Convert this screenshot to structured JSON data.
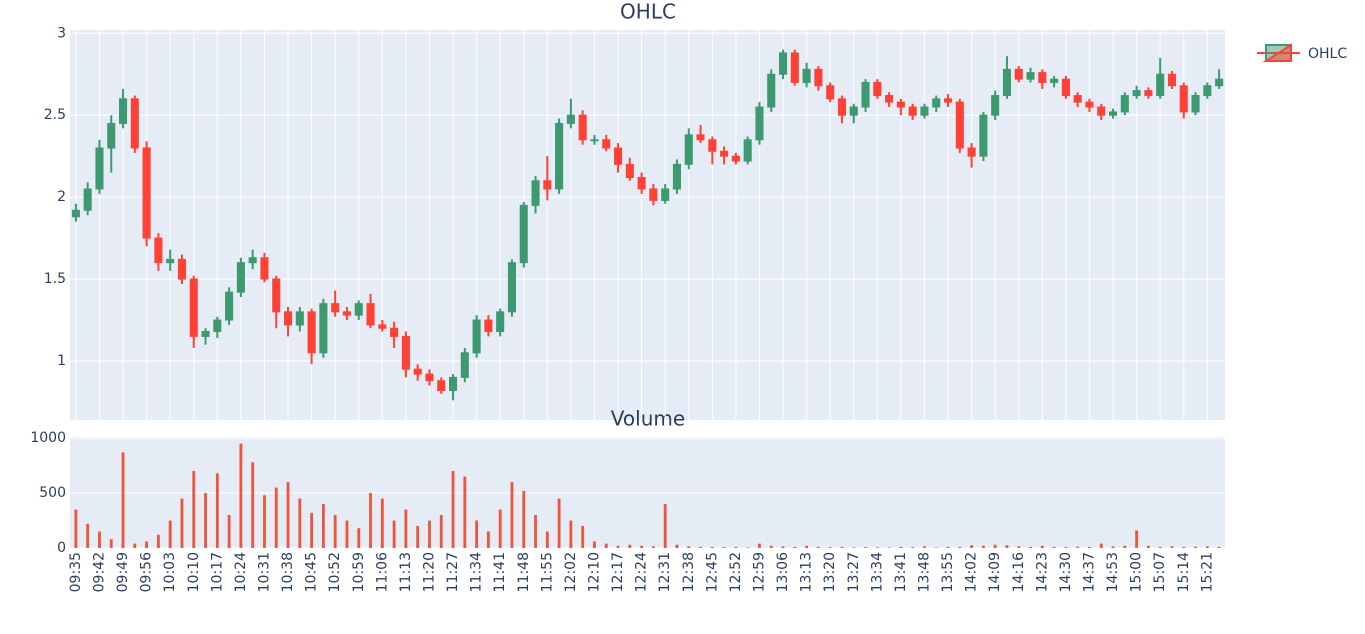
{
  "chart_data": [
    {
      "type": "candlestick",
      "title": "OHLC",
      "name": "OHLC",
      "increasing_color": "#3D9970",
      "decreasing_color": "#FF4136",
      "categories": [
        "09:35",
        null,
        "09:42",
        null,
        "09:49",
        null,
        "09:56",
        null,
        "10:03",
        null,
        "10:10",
        null,
        "10:17",
        null,
        "10:24",
        null,
        "10:31",
        null,
        "10:38",
        null,
        "10:45",
        null,
        "10:52",
        null,
        "10:59",
        null,
        "11:06",
        null,
        "11:13",
        null,
        "11:20",
        null,
        "11:27",
        null,
        "11:34",
        null,
        "11:41",
        null,
        "11:48",
        null,
        "11:55",
        null,
        "12:02",
        null,
        "12:10",
        null,
        "12:17",
        null,
        "12:24",
        null,
        "12:31",
        null,
        "12:38",
        null,
        "12:45",
        null,
        "12:52",
        null,
        "12:59",
        null,
        "13:06",
        null,
        "13:13",
        null,
        "13:20",
        null,
        "13:27",
        null,
        "13:34",
        null,
        "13:41",
        null,
        "13:48",
        null,
        "13:55",
        null,
        "14:02",
        null,
        "14:09",
        null,
        "14:16",
        null,
        "14:23",
        null,
        "14:30",
        null,
        "14:37",
        null,
        "14:53",
        null,
        "15:00",
        null,
        "15:07",
        null,
        "15:14",
        null,
        "15:21",
        null
      ],
      "open": [
        1.88,
        1.92,
        2.05,
        2.3,
        2.45,
        2.6,
        2.3,
        1.75,
        1.6,
        1.62,
        1.5,
        1.15,
        1.18,
        1.25,
        1.42,
        1.6,
        1.63,
        1.5,
        1.3,
        1.22,
        1.3,
        1.05,
        1.35,
        1.3,
        1.28,
        1.35,
        1.22,
        1.2,
        1.15,
        0.95,
        0.92,
        0.88,
        0.82,
        0.9,
        1.05,
        1.25,
        1.18,
        1.3,
        1.6,
        1.95,
        2.1,
        2.05,
        2.45,
        2.5,
        2.35,
        2.35,
        2.3,
        2.2,
        2.12,
        2.05,
        1.98,
        2.05,
        2.2,
        2.38,
        2.35,
        2.28,
        2.25,
        2.22,
        2.35,
        2.55,
        2.75,
        2.88,
        2.7,
        2.78,
        2.68,
        2.6,
        2.5,
        2.55,
        2.7,
        2.62,
        2.58,
        2.55,
        2.5,
        2.55,
        2.6,
        2.58,
        2.3,
        2.25,
        2.5,
        2.62,
        2.78,
        2.72,
        2.76,
        2.7,
        2.72,
        2.62,
        2.58,
        2.55,
        2.5,
        2.52,
        2.62,
        2.65,
        2.62,
        2.75,
        2.68,
        2.52,
        2.62,
        2.68
      ],
      "high": [
        1.96,
        2.09,
        2.35,
        2.5,
        2.66,
        2.62,
        2.34,
        1.78,
        1.68,
        1.65,
        1.52,
        1.2,
        1.27,
        1.45,
        1.63,
        1.68,
        1.66,
        1.52,
        1.33,
        1.33,
        1.32,
        1.38,
        1.43,
        1.33,
        1.37,
        1.41,
        1.25,
        1.24,
        1.18,
        0.98,
        0.95,
        0.9,
        0.92,
        1.08,
        1.28,
        1.28,
        1.32,
        1.62,
        1.97,
        2.13,
        2.25,
        2.48,
        2.6,
        2.53,
        2.38,
        2.38,
        2.33,
        2.24,
        2.15,
        2.08,
        2.08,
        2.23,
        2.42,
        2.44,
        2.37,
        2.31,
        2.27,
        2.37,
        2.58,
        2.78,
        2.9,
        2.9,
        2.82,
        2.8,
        2.7,
        2.62,
        2.57,
        2.72,
        2.72,
        2.64,
        2.6,
        2.57,
        2.57,
        2.62,
        2.63,
        2.6,
        2.33,
        2.52,
        2.65,
        2.86,
        2.8,
        2.79,
        2.78,
        2.74,
        2.74,
        2.64,
        2.6,
        2.57,
        2.54,
        2.64,
        2.68,
        2.67,
        2.85,
        2.77,
        2.7,
        2.64,
        2.7,
        2.78
      ],
      "low": [
        1.85,
        1.89,
        2.02,
        2.15,
        2.42,
        2.27,
        1.7,
        1.55,
        1.55,
        1.47,
        1.08,
        1.1,
        1.14,
        1.22,
        1.39,
        1.56,
        1.48,
        1.2,
        1.15,
        1.18,
        0.98,
        1.02,
        1.27,
        1.25,
        1.25,
        1.2,
        1.18,
        1.08,
        0.9,
        0.88,
        0.85,
        0.8,
        0.76,
        0.87,
        1.02,
        1.15,
        1.15,
        1.27,
        1.57,
        1.9,
        1.98,
        2.02,
        2.42,
        2.32,
        2.32,
        2.28,
        2.15,
        2.1,
        2.02,
        1.95,
        1.96,
        2.02,
        2.17,
        2.33,
        2.2,
        2.2,
        2.2,
        2.2,
        2.32,
        2.52,
        2.72,
        2.68,
        2.67,
        2.65,
        2.58,
        2.45,
        2.45,
        2.52,
        2.6,
        2.55,
        2.5,
        2.47,
        2.48,
        2.52,
        2.55,
        2.27,
        2.18,
        2.22,
        2.47,
        2.6,
        2.7,
        2.7,
        2.66,
        2.67,
        2.6,
        2.55,
        2.52,
        2.47,
        2.48,
        2.5,
        2.6,
        2.6,
        2.6,
        2.66,
        2.48,
        2.5,
        2.6,
        2.66
      ],
      "close": [
        1.92,
        2.05,
        2.3,
        2.45,
        2.6,
        2.3,
        1.75,
        1.6,
        1.62,
        1.5,
        1.15,
        1.18,
        1.25,
        1.42,
        1.6,
        1.63,
        1.5,
        1.3,
        1.22,
        1.3,
        1.05,
        1.35,
        1.3,
        1.28,
        1.35,
        1.22,
        1.2,
        1.15,
        0.95,
        0.92,
        0.88,
        0.82,
        0.9,
        1.05,
        1.25,
        1.18,
        1.3,
        1.6,
        1.95,
        2.1,
        2.05,
        2.45,
        2.5,
        2.35,
        2.35,
        2.3,
        2.2,
        2.12,
        2.05,
        1.98,
        2.05,
        2.2,
        2.38,
        2.35,
        2.28,
        2.25,
        2.22,
        2.35,
        2.55,
        2.75,
        2.88,
        2.7,
        2.78,
        2.68,
        2.6,
        2.5,
        2.55,
        2.7,
        2.62,
        2.58,
        2.55,
        2.5,
        2.55,
        2.6,
        2.58,
        2.3,
        2.25,
        2.5,
        2.62,
        2.78,
        2.72,
        2.76,
        2.7,
        2.72,
        2.62,
        2.58,
        2.55,
        2.5,
        2.52,
        2.62,
        2.65,
        2.62,
        2.75,
        2.68,
        2.52,
        2.62,
        2.68,
        2.72
      ],
      "ylim": [
        0.64,
        3.02
      ],
      "yticks": [
        1,
        1.5,
        2,
        2.5,
        3
      ],
      "grid": true
    },
    {
      "type": "bar",
      "title": "Volume",
      "color": "#EF553B",
      "values": [
        350,
        220,
        150,
        80,
        870,
        40,
        60,
        120,
        250,
        450,
        700,
        500,
        680,
        300,
        950,
        780,
        480,
        550,
        600,
        450,
        320,
        400,
        300,
        250,
        180,
        500,
        450,
        250,
        350,
        200,
        250,
        300,
        700,
        650,
        250,
        150,
        350,
        600,
        520,
        300,
        150,
        450,
        250,
        200,
        60,
        40,
        20,
        30,
        20,
        15,
        400,
        30,
        15,
        10,
        10,
        8,
        10,
        5,
        40,
        20,
        15,
        10,
        20,
        10,
        8,
        10,
        5,
        8,
        6,
        5,
        10,
        8,
        15,
        5,
        10,
        10,
        25,
        20,
        30,
        25,
        15,
        10,
        20,
        10,
        8,
        12,
        10,
        40,
        15,
        20,
        160,
        20,
        10,
        15,
        10,
        12,
        15,
        10
      ],
      "ylim": [
        0,
        1010
      ],
      "yticks": [
        0,
        500,
        1000
      ],
      "grid": true
    }
  ]
}
